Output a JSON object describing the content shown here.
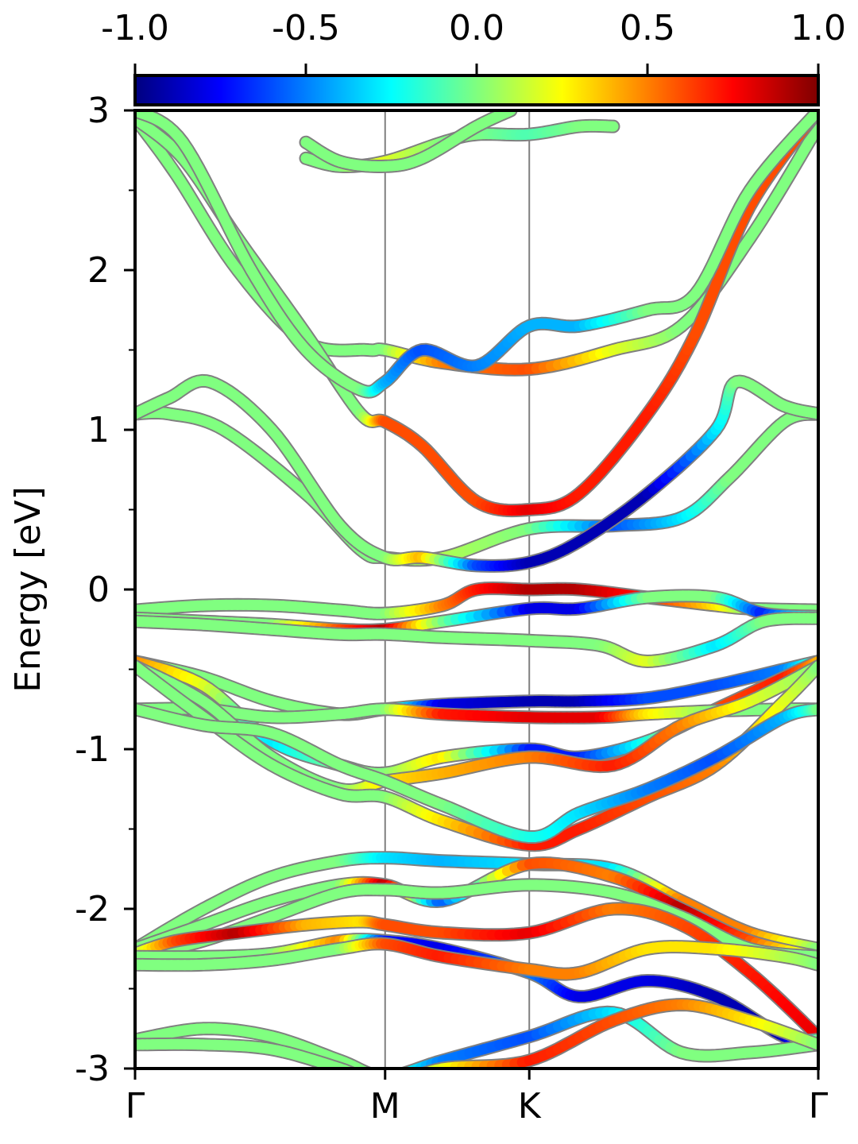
{
  "chart_data": {
    "type": "line",
    "title": "",
    "ylabel": "Energy [eV]",
    "ylim": [
      -3,
      3
    ],
    "y_ticks": [
      "-3",
      "-2",
      "-1",
      "0",
      "1",
      "2",
      "3"
    ],
    "y_tick_values": [
      -3,
      -2,
      -1,
      0,
      1,
      2,
      3
    ],
    "y_minor_ticks": [
      -2.5,
      -1.5,
      -0.5,
      0.5,
      1.5,
      2.5
    ],
    "xlim": [
      0,
      1
    ],
    "k_points": [
      {
        "label": "Γ",
        "x": 0.0
      },
      {
        "label": "M",
        "x": 0.366
      },
      {
        "label": "K",
        "x": 0.577
      },
      {
        "label": "Γ",
        "x": 1.0
      }
    ],
    "colorbar": {
      "colormap": "jet",
      "range": [
        -1.0,
        1.0
      ],
      "tick_labels": [
        "-1.0",
        "-0.5",
        "0.0",
        "0.5",
        "1.0"
      ],
      "tick_values": [
        -1.0,
        -0.5,
        0.0,
        0.5,
        1.0
      ]
    },
    "series": [
      {
        "x": [
          0,
          0.06,
          0.15,
          0.25,
          0.34,
          0.366,
          0.45,
          0.577,
          0.7,
          0.8,
          0.9,
          1.0
        ],
        "y": [
          2.95,
          2.6,
          2.0,
          1.55,
          1.5,
          1.5,
          1.42,
          1.38,
          1.5,
          1.65,
          2.2,
          2.9
        ],
        "w": [
          0,
          0,
          0,
          0,
          0,
          0,
          0.5,
          0.6,
          0.2,
          0,
          0,
          0
        ]
      },
      {
        "x": [
          0,
          0.07,
          0.15,
          0.25,
          0.33,
          0.366,
          0.42,
          0.5,
          0.577,
          0.65,
          0.75,
          0.82,
          0.9,
          1.0
        ],
        "y": [
          2.95,
          2.7,
          2.2,
          1.6,
          1.1,
          1.05,
          0.9,
          0.55,
          0.5,
          0.6,
          1.1,
          1.6,
          2.4,
          3.0
        ],
        "w": [
          0,
          0,
          0,
          0,
          0,
          0.6,
          0.6,
          0.6,
          0.8,
          0.7,
          0.7,
          0.6,
          0.6,
          0.6
        ]
      },
      {
        "x": [
          0,
          0.07,
          0.17,
          0.25,
          0.33,
          0.366,
          0.42,
          0.5,
          0.577,
          0.65,
          0.75,
          0.82,
          0.9,
          1.0
        ],
        "y": [
          3.0,
          2.8,
          2.0,
          1.5,
          1.25,
          1.3,
          1.5,
          1.4,
          1.65,
          1.65,
          1.75,
          1.85,
          2.5,
          3.0
        ],
        "w": [
          0,
          0,
          0,
          0,
          0,
          -0.4,
          -0.6,
          -0.5,
          -0.4,
          -0.4,
          0,
          0,
          0,
          0
        ]
      },
      {
        "x": [
          0,
          0.05,
          0.13,
          0.25,
          0.33,
          0.366,
          0.45,
          0.577,
          0.7,
          0.8,
          0.87,
          0.95,
          1.0
        ],
        "y": [
          1.1,
          1.1,
          1.0,
          0.6,
          0.25,
          0.2,
          0.2,
          0.38,
          0.4,
          0.45,
          0.7,
          1.05,
          1.1
        ],
        "w": [
          0,
          0,
          0,
          0,
          0,
          0,
          0.1,
          0,
          -0.6,
          -0.3,
          0,
          0,
          0
        ]
      },
      {
        "x": [
          0,
          0.05,
          0.11,
          0.2,
          0.3,
          0.366,
          0.42,
          0.5,
          0.577,
          0.65,
          0.75,
          0.85,
          0.88,
          0.95,
          1.0
        ],
        "y": [
          1.1,
          1.2,
          1.3,
          1.0,
          0.4,
          0.2,
          0.2,
          0.15,
          0.17,
          0.3,
          0.6,
          1.0,
          1.3,
          1.15,
          1.1
        ],
        "w": [
          0,
          0,
          0,
          0,
          0,
          0,
          0.4,
          -0.6,
          -0.9,
          -0.9,
          -0.9,
          -0.3,
          0,
          0,
          0
        ]
      },
      {
        "x": [
          0,
          0.1,
          0.2,
          0.3,
          0.366,
          0.45,
          0.5,
          0.577,
          0.65,
          0.75,
          0.85,
          0.9,
          1.0
        ],
        "y": [
          -0.13,
          -0.1,
          -0.1,
          -0.13,
          -0.15,
          -0.1,
          0.0,
          0.0,
          0.0,
          -0.05,
          -0.1,
          -0.12,
          -0.13
        ],
        "w": [
          0,
          0,
          0,
          0,
          0,
          0.5,
          0.7,
          0.9,
          0.9,
          0.7,
          0.3,
          0,
          0
        ]
      },
      {
        "x": [
          0,
          0.1,
          0.2,
          0.3,
          0.366,
          0.45,
          0.577,
          0.65,
          0.75,
          0.85,
          0.92,
          1.0
        ],
        "y": [
          -0.18,
          -0.2,
          -0.22,
          -0.25,
          -0.25,
          -0.2,
          -0.12,
          -0.12,
          -0.05,
          -0.05,
          -0.15,
          -0.17
        ],
        "w": [
          0,
          0,
          0,
          0.6,
          0.9,
          0,
          -0.8,
          -0.8,
          0,
          0,
          -0.7,
          0
        ]
      },
      {
        "x": [
          0,
          0.1,
          0.2,
          0.3,
          0.366,
          0.45,
          0.577,
          0.68,
          0.75,
          0.85,
          0.92,
          1.0
        ],
        "y": [
          -0.2,
          -0.22,
          -0.25,
          -0.28,
          -0.28,
          -0.3,
          -0.32,
          -0.35,
          -0.45,
          -0.35,
          -0.2,
          -0.18
        ],
        "w": [
          0,
          0,
          0,
          0,
          0,
          0,
          0,
          0,
          0.2,
          -0.3,
          0,
          0
        ]
      },
      {
        "x": [
          0,
          0.1,
          0.2,
          0.3,
          0.366,
          0.45,
          0.577,
          0.65,
          0.75,
          0.85,
          0.95,
          1.0
        ],
        "y": [
          -0.45,
          -0.55,
          -0.7,
          -0.78,
          -0.75,
          -0.72,
          -0.7,
          -0.7,
          -0.68,
          -0.6,
          -0.5,
          -0.45
        ],
        "w": [
          0,
          0,
          0,
          0,
          0,
          -0.8,
          -0.9,
          -0.9,
          -0.6,
          -0.6,
          -0.5,
          0
        ]
      },
      {
        "x": [
          0,
          0.1,
          0.2,
          0.3,
          0.366,
          0.45,
          0.577,
          0.65,
          0.75,
          0.85,
          0.95,
          1.0
        ],
        "y": [
          -0.45,
          -0.6,
          -0.95,
          -1.1,
          -1.15,
          -1.05,
          -1.0,
          -1.05,
          -0.95,
          -0.75,
          -0.55,
          -0.45
        ],
        "w": [
          0.5,
          0.2,
          -0.3,
          0,
          0,
          0.3,
          -0.7,
          -0.7,
          -0.2,
          0.6,
          0.7,
          0.4
        ]
      },
      {
        "x": [
          0,
          0.1,
          0.2,
          0.3,
          0.366,
          0.45,
          0.577,
          0.68,
          0.75,
          0.85,
          0.95,
          1.0
        ],
        "y": [
          -0.75,
          -0.75,
          -0.8,
          -0.78,
          -0.75,
          -0.78,
          -0.8,
          -0.8,
          -0.78,
          -0.76,
          -0.75,
          -0.75
        ],
        "w": [
          0,
          0,
          0,
          0,
          0,
          0.7,
          0.8,
          0.8,
          0.3,
          0,
          0,
          0
        ]
      },
      {
        "x": [
          0,
          0.1,
          0.2,
          0.3,
          0.366,
          0.45,
          0.577,
          0.7,
          0.8,
          0.9,
          1.0
        ],
        "y": [
          -0.48,
          -0.7,
          -1.05,
          -1.25,
          -1.2,
          -1.15,
          -1.05,
          -1.1,
          -0.85,
          -0.7,
          -0.48
        ],
        "w": [
          0,
          0,
          0,
          0,
          0.3,
          0.4,
          0.5,
          0.7,
          0.5,
          0.2,
          0
        ]
      },
      {
        "x": [
          0,
          0.1,
          0.2,
          0.3,
          0.366,
          0.45,
          0.577,
          0.65,
          0.75,
          0.85,
          0.95,
          1.0
        ],
        "y": [
          -0.48,
          -0.8,
          -1.1,
          -1.28,
          -1.3,
          -1.45,
          -1.6,
          -1.5,
          -1.3,
          -1.1,
          -0.7,
          -0.48
        ],
        "w": [
          0,
          0,
          0,
          0,
          0,
          0.3,
          0.7,
          0.7,
          0.6,
          0.5,
          0.2,
          0
        ]
      },
      {
        "x": [
          0,
          0.1,
          0.2,
          0.3,
          0.366,
          0.45,
          0.577,
          0.65,
          0.75,
          0.85,
          0.95,
          1.0
        ],
        "y": [
          -0.75,
          -0.85,
          -0.9,
          -1.1,
          -1.2,
          -1.35,
          -1.55,
          -1.4,
          -1.25,
          -1.05,
          -0.8,
          -0.75
        ],
        "w": [
          0,
          0,
          0,
          0,
          0,
          0,
          -0.2,
          -0.3,
          -0.5,
          -0.6,
          -0.4,
          0
        ]
      },
      {
        "x": [
          0,
          0.1,
          0.2,
          0.3,
          0.366,
          0.45,
          0.577,
          0.7,
          0.8,
          0.9,
          1.0
        ],
        "y": [
          -2.25,
          -2.0,
          -1.8,
          -1.7,
          -1.68,
          -1.7,
          -1.72,
          -1.75,
          -1.95,
          -2.15,
          -2.25
        ],
        "w": [
          0,
          0,
          0,
          0,
          -0.3,
          -0.4,
          -0.3,
          -0.3,
          0.5,
          0.5,
          0
        ]
      },
      {
        "x": [
          0,
          0.1,
          0.2,
          0.3,
          0.366,
          0.45,
          0.577,
          0.7,
          0.8,
          0.9,
          1.0
        ],
        "y": [
          -2.25,
          -2.1,
          -1.95,
          -1.85,
          -1.85,
          -1.95,
          -1.72,
          -1.8,
          -2.0,
          -2.2,
          -2.3
        ],
        "w": [
          0,
          0,
          0,
          0,
          0.9,
          -0.6,
          0.6,
          0.5,
          0.9,
          0.6,
          0
        ]
      },
      {
        "x": [
          0,
          0.1,
          0.2,
          0.3,
          0.366,
          0.45,
          0.577,
          0.7,
          0.8,
          0.9,
          1.0
        ],
        "y": [
          -2.3,
          -2.2,
          -2.05,
          -1.9,
          -1.88,
          -1.9,
          -1.85,
          -1.9,
          -2.05,
          -2.25,
          -2.3
        ],
        "w": [
          0,
          0,
          0,
          0,
          0,
          0,
          0,
          0,
          0,
          0,
          0
        ]
      },
      {
        "x": [
          0,
          0.06,
          0.15,
          0.25,
          0.33,
          0.366,
          0.45,
          0.577,
          0.7,
          0.8,
          0.9,
          1.0
        ],
        "y": [
          -2.28,
          -2.2,
          -2.15,
          -2.1,
          -2.08,
          -2.1,
          -2.15,
          -2.15,
          -2.0,
          -2.1,
          -2.4,
          -2.8
        ],
        "w": [
          0,
          0.6,
          0.9,
          0.4,
          0.3,
          0.6,
          0.6,
          0.8,
          0.5,
          0.6,
          0.7,
          0.8
        ]
      },
      {
        "x": [
          0,
          0.1,
          0.2,
          0.3,
          0.366,
          0.45,
          0.577,
          0.65,
          0.75,
          0.85,
          0.95,
          1.0
        ],
        "y": [
          -2.3,
          -2.3,
          -2.28,
          -2.2,
          -2.2,
          -2.25,
          -2.4,
          -2.55,
          -2.45,
          -2.55,
          -2.8,
          -2.82
        ],
        "w": [
          0,
          0,
          0,
          0.5,
          -0.7,
          -0.8,
          -0.5,
          -0.8,
          -0.8,
          -0.9,
          -0.9,
          0
        ]
      },
      {
        "x": [
          0,
          0.1,
          0.2,
          0.3,
          0.366,
          0.45,
          0.577,
          0.65,
          0.75,
          0.85,
          0.95,
          1.0
        ],
        "y": [
          -2.35,
          -2.35,
          -2.32,
          -2.25,
          -2.22,
          -2.3,
          -2.38,
          -2.4,
          -2.25,
          -2.25,
          -2.3,
          -2.35
        ],
        "w": [
          0,
          0,
          0,
          0,
          0.6,
          0.7,
          0.5,
          0.5,
          0.3,
          0.3,
          0.1,
          0
        ]
      },
      {
        "x": [
          0,
          0.1,
          0.2,
          0.3,
          0.366,
          0.45,
          0.577,
          0.7,
          0.8,
          0.9,
          1.0
        ],
        "y": [
          -2.82,
          -2.75,
          -2.8,
          -2.95,
          -3.05,
          -2.95,
          -2.8,
          -2.65,
          -2.9,
          -2.9,
          -2.85
        ],
        "w": [
          0,
          0,
          0,
          0,
          0,
          -0.5,
          -0.6,
          -0.3,
          0,
          0,
          0
        ]
      },
      {
        "x": [
          0,
          0.1,
          0.2,
          0.3,
          0.366,
          0.45,
          0.577,
          0.7,
          0.8,
          0.9,
          1.0
        ],
        "y": [
          -2.85,
          -2.85,
          -2.88,
          -3.0,
          -3.1,
          -3.0,
          -2.95,
          -2.7,
          -2.6,
          -2.7,
          -2.85
        ],
        "w": [
          0,
          0,
          0,
          0,
          0,
          0.2,
          0.7,
          0.6,
          0.5,
          0.3,
          0
        ]
      },
      {
        "x": [
          0.25,
          0.3,
          0.366,
          0.45,
          0.5,
          0.577,
          0.65,
          0.7
        ],
        "y": [
          2.7,
          2.65,
          2.68,
          2.8,
          2.85,
          2.85,
          2.9,
          2.9
        ],
        "w": [
          0,
          0,
          0.2,
          0,
          0,
          -0.1,
          0,
          0
        ]
      },
      {
        "x": [
          0.25,
          0.3,
          0.366,
          0.42,
          0.5,
          0.55
        ],
        "y": [
          2.8,
          2.68,
          2.65,
          2.7,
          2.9,
          3.0
        ],
        "w": [
          0,
          0,
          0,
          0,
          0,
          0
        ]
      }
    ]
  }
}
